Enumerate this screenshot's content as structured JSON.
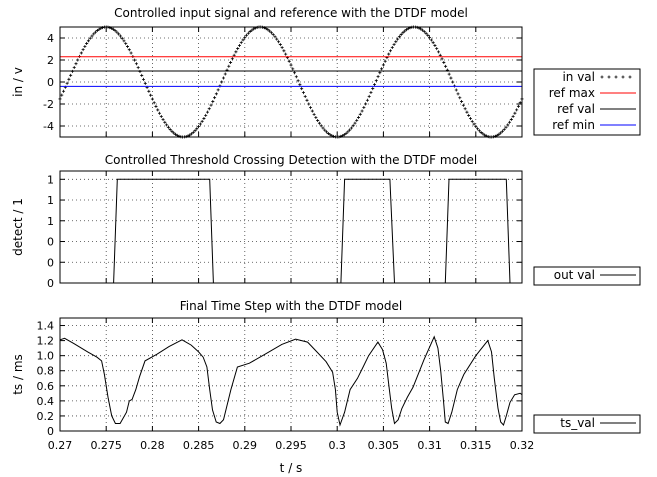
{
  "chart_data": [
    {
      "type": "scatter",
      "title": "Controlled input signal and reference with the DTDF model",
      "xlabel": "",
      "ylabel": "in / v",
      "xlim": [
        0.27,
        0.32
      ],
      "ylim": [
        -5,
        5
      ],
      "yticks": [
        -4,
        -2,
        0,
        2,
        4
      ],
      "grid": true,
      "legend_position": "right",
      "series": [
        {
          "name": "in  val",
          "style": "points",
          "color": "#000000",
          "sine": {
            "amplitude": 5.0,
            "frequency_hz": 60,
            "phase_rad": -1.57
          }
        },
        {
          "name": "ref max",
          "style": "line",
          "color": "#ff0000",
          "constant": 2.3
        },
        {
          "name": "ref val",
          "style": "line",
          "color": "#000000",
          "constant": 1.0
        },
        {
          "name": "ref min",
          "style": "line",
          "color": "#0000ff",
          "constant": -0.4
        }
      ]
    },
    {
      "type": "line",
      "title": "Controlled Threshold Crossing Detection with the DTDF model",
      "xlabel": "",
      "ylabel": "detect / 1",
      "xlim": [
        0.27,
        0.32
      ],
      "ylim": [
        0,
        1.08
      ],
      "ytick_values": [
        0,
        0.2,
        0.4,
        0.6,
        0.8,
        1.0
      ],
      "ytick_labels": [
        "0",
        "0",
        "0",
        "1",
        "1",
        "1"
      ],
      "grid": true,
      "legend_position": "right",
      "series": [
        {
          "name": "out val",
          "color": "#000000",
          "x": [
            0.27,
            0.2758,
            0.2762,
            0.2862,
            0.2866,
            0.3004,
            0.3008,
            0.3057,
            0.3062,
            0.3117,
            0.3121,
            0.3183,
            0.3187,
            0.32
          ],
          "y": [
            0,
            0,
            1,
            1,
            0,
            0,
            1,
            1,
            0,
            0,
            1,
            1,
            0,
            0
          ]
        }
      ]
    },
    {
      "type": "line",
      "title": "Final Time Step with the DTDF model",
      "xlabel": "t / s",
      "ylabel": "ts / ms",
      "xlim": [
        0.27,
        0.32
      ],
      "ylim": [
        0,
        1.5
      ],
      "yticks": [
        0,
        0.2,
        0.4,
        0.6,
        0.8,
        1.0,
        1.2,
        1.4
      ],
      "ytick_labels": [
        "0",
        "0.2",
        "0.4",
        "0.6",
        "0.8",
        "1.0",
        "1.2",
        "1.4"
      ],
      "xticks": [
        0.27,
        0.275,
        0.28,
        0.285,
        0.29,
        0.295,
        0.3,
        0.305,
        0.31,
        0.315,
        0.32
      ],
      "xtick_labels": [
        "0.27",
        "0.275",
        "0.28",
        "0.285",
        "0.29",
        "0.295",
        "0.3",
        "0.305",
        "0.31",
        "0.315",
        "0.32"
      ],
      "grid": true,
      "legend_position": "right",
      "series": [
        {
          "name": "ts_val",
          "color": "#000000",
          "x": [
            0.27,
            0.2705,
            0.2715,
            0.273,
            0.274,
            0.2745,
            0.2748,
            0.2752,
            0.2756,
            0.276,
            0.2765,
            0.2772,
            0.2775,
            0.2778,
            0.2782,
            0.2786,
            0.2792,
            0.2805,
            0.2818,
            0.2832,
            0.2842,
            0.285,
            0.2855,
            0.2859,
            0.2862,
            0.2865,
            0.2869,
            0.2873,
            0.2877,
            0.288,
            0.2885,
            0.2892,
            0.2905,
            0.2922,
            0.294,
            0.2955,
            0.2968,
            0.2978,
            0.2988,
            0.2995,
            0.2998,
            0.3,
            0.3003,
            0.3008,
            0.3014,
            0.3022,
            0.3028,
            0.3034,
            0.3044,
            0.3049,
            0.3053,
            0.3056,
            0.3059,
            0.3062,
            0.3066,
            0.307,
            0.3076,
            0.3082,
            0.3094,
            0.3105,
            0.3109,
            0.3112,
            0.3115,
            0.3117,
            0.312,
            0.3124,
            0.313,
            0.3137,
            0.315,
            0.3163,
            0.3167,
            0.317,
            0.3174,
            0.3177,
            0.318,
            0.3183,
            0.3187,
            0.3192,
            0.3198,
            0.32
          ],
          "y": [
            1.21,
            1.23,
            1.16,
            1.05,
            0.98,
            0.93,
            0.75,
            0.45,
            0.2,
            0.1,
            0.1,
            0.25,
            0.4,
            0.42,
            0.55,
            0.72,
            0.93,
            1.02,
            1.12,
            1.21,
            1.14,
            1.05,
            0.98,
            0.85,
            0.55,
            0.28,
            0.12,
            0.1,
            0.15,
            0.3,
            0.55,
            0.85,
            0.9,
            1.02,
            1.15,
            1.22,
            1.18,
            1.05,
            0.92,
            0.78,
            0.55,
            0.25,
            0.08,
            0.25,
            0.55,
            0.7,
            0.85,
            1.0,
            1.18,
            1.08,
            0.9,
            0.6,
            0.3,
            0.1,
            0.15,
            0.3,
            0.45,
            0.58,
            0.95,
            1.25,
            1.1,
            0.8,
            0.4,
            0.12,
            0.1,
            0.25,
            0.55,
            0.75,
            1.0,
            1.2,
            1.05,
            0.7,
            0.3,
            0.12,
            0.08,
            0.2,
            0.38,
            0.48,
            0.5,
            0.48
          ]
        }
      ]
    }
  ]
}
